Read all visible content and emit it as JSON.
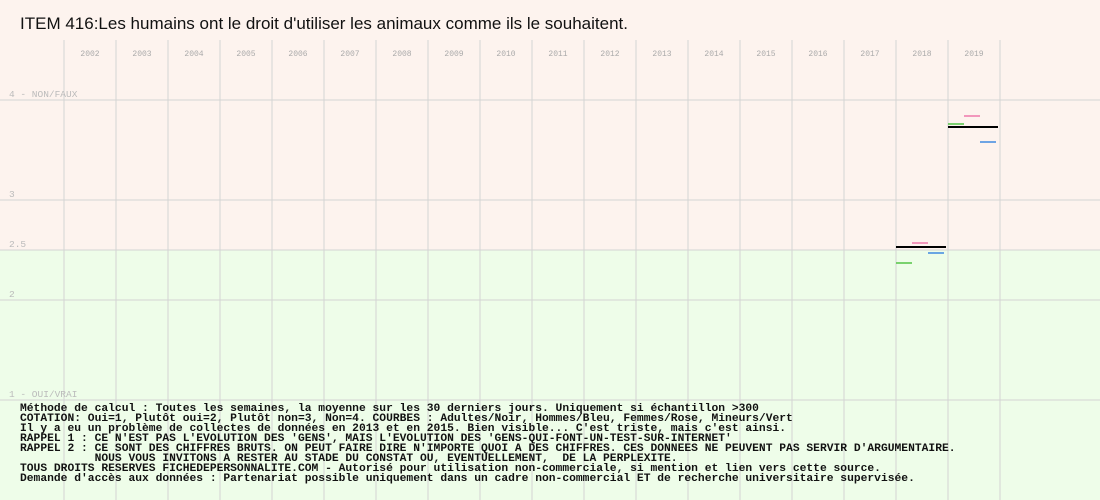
{
  "chart_data": {
    "type": "line",
    "title": "ITEM 416:Les humains ont le droit d'utiliser les animaux comme ils le souhaitent.",
    "categories": [
      "2002",
      "2003",
      "2004",
      "2005",
      "2006",
      "2007",
      "2008",
      "2009",
      "2010",
      "2011",
      "2012",
      "2013",
      "2014",
      "2015",
      "2016",
      "2017",
      "2018",
      "2019"
    ],
    "series": [
      {
        "color": "#000000",
        "values": [
          null,
          null,
          null,
          null,
          null,
          null,
          null,
          null,
          null,
          null,
          null,
          null,
          null,
          null,
          null,
          null,
          2.53,
          3.73
        ]
      },
      {
        "color": "#4a90e2",
        "values": [
          null,
          null,
          null,
          null,
          null,
          null,
          null,
          null,
          null,
          null,
          null,
          null,
          null,
          null,
          null,
          null,
          2.47,
          3.58
        ]
      },
      {
        "color": "#f080b0",
        "values": [
          null,
          null,
          null,
          null,
          null,
          null,
          null,
          null,
          null,
          null,
          null,
          null,
          null,
          null,
          null,
          null,
          2.57,
          3.84
        ]
      },
      {
        "color": "#5cc850",
        "values": [
          null,
          null,
          null,
          null,
          null,
          null,
          null,
          null,
          null,
          null,
          null,
          null,
          null,
          null,
          null,
          null,
          2.37,
          3.76
        ]
      }
    ],
    "ylim": [
      0,
      4.6
    ],
    "yticks": [
      {
        "value": 1,
        "label": "1 - OUI/VRAI"
      },
      2,
      2.5,
      3,
      {
        "value": 4,
        "label": "4 - NON/FAUX"
      }
    ],
    "grid": true,
    "zones": [
      {
        "from": 2.5,
        "to": 4.6,
        "color": "#fdf3ee"
      },
      {
        "from": 0,
        "to": 2.5,
        "color": "#eefde9"
      }
    ],
    "notes": [
      "Méthode de calcul : Toutes les semaines, la moyenne sur les 30 derniers jours. Uniquement si échantillon >300",
      "COTATION: Oui=1, Plutôt oui=2, Plutôt non=3, Non=4. COURBES : Adultes/Noir, Hommes/Bleu, Femmes/Rose, Mineurs/Vert",
      "Il y a eu un problème de collectes de données en 2013 et en 2015. Bien visible... C'est triste, mais c'est ainsi.",
      "RAPPEL 1 : CE N'EST PAS L'EVOLUTION DES 'GENS', MAIS L'EVOLUTION DES 'GENS-QUI-FONT-UN-TEST-SUR-INTERNET'",
      "RAPPEL 2 : CE SONT DES CHIFFRES BRUTS. ON PEUT FAIRE DIRE N'IMPORTE QUOI A DES CHIFFRES. CES DONNEES NE PEUVENT PAS SERVIR D'ARGUMENTAIRE.",
      "           NOUS VOUS INVITONS A RESTER AU STADE DU CONSTAT OU, EVENTUELLEMENT,  DE LA PERPLEXITE.",
      "TOUS DROITS RESERVES FICHEDEPERSONNALITE.COM - Autorisé pour utilisation non-commerciale, si mention et lien vers cette source.",
      "Demande d'accès aux données : Partenariat possible uniquement dans un cadre non-commercial ET de recherche universitaire supervisée."
    ]
  }
}
